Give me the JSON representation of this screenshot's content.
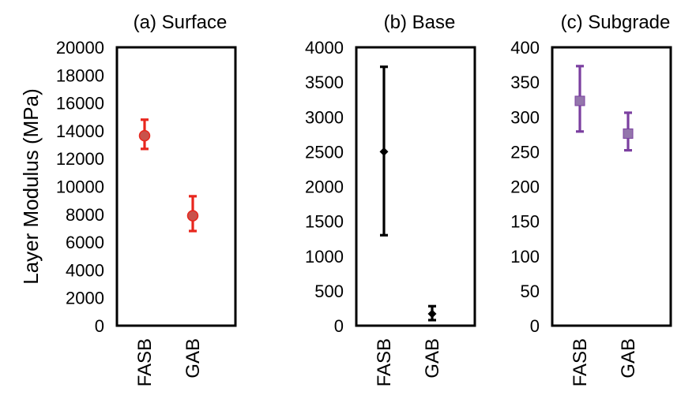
{
  "y_axis_label": "Layer Modulus (MPa)",
  "chart_data": [
    {
      "type": "scatter",
      "title": "(a) Surface",
      "categories": [
        "FASB",
        "GAB"
      ],
      "ylabel": "Layer Modulus (MPa)",
      "ylim": [
        0,
        20000
      ],
      "yticks": [
        0,
        2000,
        4000,
        6000,
        8000,
        10000,
        12000,
        14000,
        16000,
        18000,
        20000
      ],
      "ytick_labels": [
        "0",
        "2000",
        "4000",
        "6000",
        "8000",
        "10000",
        "12000",
        "14000",
        "16000",
        "18000",
        "20000"
      ],
      "marker": "circle",
      "color": "#e8261d",
      "marker_color": "#c9524b",
      "series": [
        {
          "values": [
            13650,
            7900
          ],
          "error_low": [
            12700,
            6800
          ],
          "error_high": [
            14800,
            9300
          ]
        }
      ],
      "grid": false
    },
    {
      "type": "scatter",
      "title": "(b) Base",
      "categories": [
        "FASB",
        "GAB"
      ],
      "ylim": [
        0,
        4000
      ],
      "yticks": [
        0,
        500,
        1000,
        1500,
        2000,
        2500,
        3000,
        3500,
        4000
      ],
      "ytick_labels": [
        "0",
        "500",
        "1000",
        "1500",
        "2000",
        "2500",
        "3000",
        "3500",
        "4000"
      ],
      "marker": "diamond",
      "color": "#000000",
      "marker_color": "#000000",
      "series": [
        {
          "values": [
            2500,
            170
          ],
          "error_low": [
            1300,
            80
          ],
          "error_high": [
            3720,
            280
          ]
        }
      ],
      "grid": false
    },
    {
      "type": "scatter",
      "title": "(c) Subgrade",
      "categories": [
        "FASB",
        "GAB"
      ],
      "ylim": [
        0,
        400
      ],
      "yticks": [
        0,
        50,
        100,
        150,
        200,
        250,
        300,
        350,
        400
      ],
      "ytick_labels": [
        "0",
        "50",
        "100",
        "150",
        "200",
        "250",
        "300",
        "350",
        "400"
      ],
      "marker": "square",
      "color": "#7b3fa0",
      "marker_color": "#9476ac",
      "series": [
        {
          "values": [
            323,
            276
          ],
          "error_low": [
            279,
            252
          ],
          "error_high": [
            373,
            306
          ]
        }
      ],
      "grid": false
    }
  ]
}
